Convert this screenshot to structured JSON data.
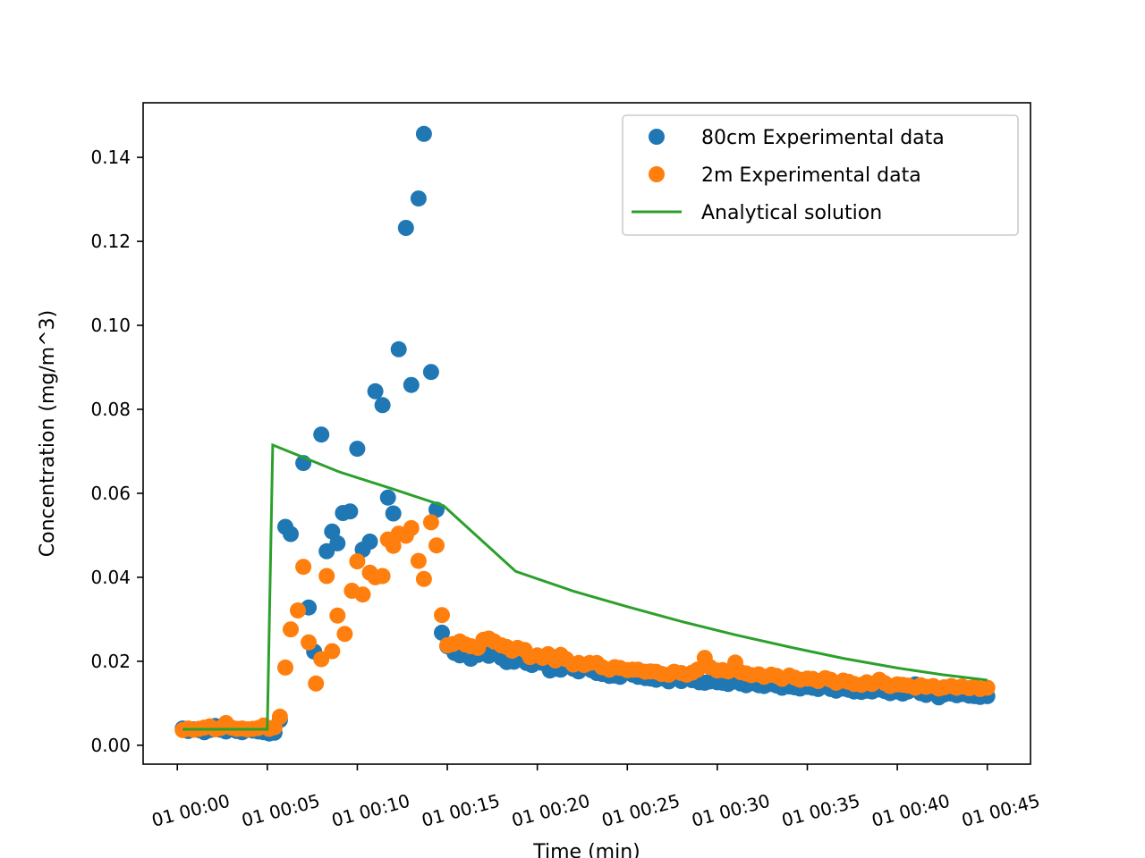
{
  "chart_data": {
    "type": "scatter",
    "xlabel": "Time (min)",
    "ylabel": "Concentration (mg/m^3)",
    "xlim": [
      -1.9,
      47.4
    ],
    "ylim": [
      -0.0045,
      0.153
    ],
    "x_ticks": [
      {
        "value": 0,
        "label": "01 00:00"
      },
      {
        "value": 5,
        "label": "01 00:05"
      },
      {
        "value": 10,
        "label": "01 00:10"
      },
      {
        "value": 15,
        "label": "01 00:15"
      },
      {
        "value": 20,
        "label": "01 00:20"
      },
      {
        "value": 25,
        "label": "01 00:25"
      },
      {
        "value": 30,
        "label": "01 00:30"
      },
      {
        "value": 35,
        "label": "01 00:35"
      },
      {
        "value": 40,
        "label": "01 00:40"
      },
      {
        "value": 45,
        "label": "01 00:45"
      }
    ],
    "y_ticks": [
      {
        "value": 0.0,
        "label": "0.00"
      },
      {
        "value": 0.02,
        "label": "0.02"
      },
      {
        "value": 0.04,
        "label": "0.04"
      },
      {
        "value": 0.06,
        "label": "0.06"
      },
      {
        "value": 0.08,
        "label": "0.08"
      },
      {
        "value": 0.1,
        "label": "0.10"
      },
      {
        "value": 0.12,
        "label": "0.12"
      },
      {
        "value": 0.14,
        "label": "0.14"
      }
    ],
    "grid": false,
    "legend_position": "top-right",
    "series": [
      {
        "name": "80cm Experimental data",
        "kind": "scatter",
        "color": "#1f77b4",
        "points": [
          [
            0.3,
            0.004
          ],
          [
            0.6,
            0.0034
          ],
          [
            0.9,
            0.0038
          ],
          [
            1.2,
            0.0036
          ],
          [
            1.5,
            0.0031
          ],
          [
            1.8,
            0.0036
          ],
          [
            2.1,
            0.0046
          ],
          [
            2.4,
            0.0037
          ],
          [
            2.7,
            0.0033
          ],
          [
            3.0,
            0.0038
          ],
          [
            3.3,
            0.0034
          ],
          [
            3.6,
            0.0031
          ],
          [
            3.9,
            0.0037
          ],
          [
            4.2,
            0.0035
          ],
          [
            4.5,
            0.0033
          ],
          [
            4.8,
            0.0031
          ],
          [
            5.1,
            0.0028
          ],
          [
            5.4,
            0.003
          ],
          [
            5.7,
            0.006
          ],
          [
            6.0,
            0.052
          ],
          [
            6.3,
            0.0503
          ],
          [
            7.0,
            0.0672
          ],
          [
            7.3,
            0.0328
          ],
          [
            7.6,
            0.0223
          ],
          [
            8.0,
            0.074
          ],
          [
            8.3,
            0.0462
          ],
          [
            8.6,
            0.0509
          ],
          [
            8.9,
            0.0481
          ],
          [
            9.2,
            0.0553
          ],
          [
            9.6,
            0.0557
          ],
          [
            10.0,
            0.0706
          ],
          [
            10.3,
            0.0466
          ],
          [
            10.7,
            0.0485
          ],
          [
            11.0,
            0.0843
          ],
          [
            11.4,
            0.081
          ],
          [
            11.7,
            0.059
          ],
          [
            12.0,
            0.0552
          ],
          [
            12.3,
            0.0943
          ],
          [
            12.7,
            0.1232
          ],
          [
            13.0,
            0.0858
          ],
          [
            13.4,
            0.1302
          ],
          [
            13.7,
            0.1456
          ],
          [
            14.1,
            0.0889
          ],
          [
            14.4,
            0.0561
          ],
          [
            14.7,
            0.0268
          ],
          [
            15.0,
            0.0236
          ],
          [
            15.4,
            0.022
          ],
          [
            15.7,
            0.0214
          ],
          [
            16.0,
            0.0227
          ],
          [
            16.3,
            0.0206
          ],
          [
            16.7,
            0.0215
          ],
          [
            17.0,
            0.022
          ],
          [
            17.3,
            0.0213
          ],
          [
            17.7,
            0.0228
          ],
          [
            18.0,
            0.0208
          ],
          [
            18.3,
            0.0198
          ],
          [
            18.7,
            0.0199
          ],
          [
            19.0,
            0.0209
          ],
          [
            19.4,
            0.0196
          ],
          [
            19.7,
            0.0191
          ],
          [
            20.0,
            0.0197
          ],
          [
            20.3,
            0.0196
          ],
          [
            20.7,
            0.0178
          ],
          [
            21.0,
            0.0182
          ],
          [
            21.3,
            0.018
          ],
          [
            21.6,
            0.0191
          ],
          [
            22.0,
            0.0182
          ],
          [
            22.3,
            0.0176
          ],
          [
            22.6,
            0.0185
          ],
          [
            23.0,
            0.0179
          ],
          [
            23.3,
            0.0172
          ],
          [
            23.6,
            0.017
          ],
          [
            24.0,
            0.0165
          ],
          [
            24.3,
            0.0166
          ],
          [
            24.6,
            0.0163
          ],
          [
            25.0,
            0.0173
          ],
          [
            25.3,
            0.0168
          ],
          [
            25.6,
            0.0163
          ],
          [
            26.0,
            0.016
          ],
          [
            26.3,
            0.0159
          ],
          [
            26.6,
            0.0156
          ],
          [
            27.0,
            0.0159
          ],
          [
            27.3,
            0.0152
          ],
          [
            27.6,
            0.0161
          ],
          [
            28.0,
            0.0153
          ],
          [
            28.3,
            0.0159
          ],
          [
            28.6,
            0.0155
          ],
          [
            29.0,
            0.015
          ],
          [
            29.3,
            0.0149
          ],
          [
            29.6,
            0.0152
          ],
          [
            30.0,
            0.015
          ],
          [
            30.3,
            0.0149
          ],
          [
            30.6,
            0.0146
          ],
          [
            31.0,
            0.0152
          ],
          [
            31.3,
            0.0147
          ],
          [
            31.6,
            0.0143
          ],
          [
            32.0,
            0.0148
          ],
          [
            32.3,
            0.0143
          ],
          [
            32.6,
            0.0141
          ],
          [
            33.0,
            0.0146
          ],
          [
            33.3,
            0.0142
          ],
          [
            33.6,
            0.0137
          ],
          [
            34.0,
            0.014
          ],
          [
            34.3,
            0.0138
          ],
          [
            34.6,
            0.0135
          ],
          [
            35.0,
            0.0139
          ],
          [
            35.3,
            0.0137
          ],
          [
            35.6,
            0.0134
          ],
          [
            36.0,
            0.014
          ],
          [
            36.3,
            0.0134
          ],
          [
            36.6,
            0.013
          ],
          [
            37.0,
            0.0135
          ],
          [
            37.3,
            0.0132
          ],
          [
            37.6,
            0.0128
          ],
          [
            38.0,
            0.0127
          ],
          [
            38.3,
            0.013
          ],
          [
            38.6,
            0.0128
          ],
          [
            39.0,
            0.0133
          ],
          [
            39.3,
            0.0129
          ],
          [
            39.6,
            0.0124
          ],
          [
            40.0,
            0.0128
          ],
          [
            40.3,
            0.0123
          ],
          [
            40.6,
            0.0128
          ],
          [
            41.0,
            0.0145
          ],
          [
            41.3,
            0.0124
          ],
          [
            41.6,
            0.012
          ],
          [
            42.0,
            0.0126
          ],
          [
            42.3,
            0.0114
          ],
          [
            42.6,
            0.0121
          ],
          [
            43.0,
            0.0123
          ],
          [
            43.3,
            0.0119
          ],
          [
            43.6,
            0.0122
          ],
          [
            44.0,
            0.0118
          ],
          [
            44.3,
            0.0117
          ],
          [
            44.6,
            0.0115
          ],
          [
            45.0,
            0.0117
          ]
        ]
      },
      {
        "name": "2m Experimental data",
        "kind": "scatter",
        "color": "#ff7f0e",
        "points": [
          [
            0.3,
            0.0036
          ],
          [
            0.6,
            0.004
          ],
          [
            0.9,
            0.0037
          ],
          [
            1.2,
            0.0039
          ],
          [
            1.5,
            0.0042
          ],
          [
            1.8,
            0.0045
          ],
          [
            2.1,
            0.0038
          ],
          [
            2.4,
            0.0041
          ],
          [
            2.7,
            0.0053
          ],
          [
            3.0,
            0.0042
          ],
          [
            3.3,
            0.0039
          ],
          [
            3.6,
            0.004
          ],
          [
            3.9,
            0.0038
          ],
          [
            4.2,
            0.0039
          ],
          [
            4.5,
            0.0041
          ],
          [
            4.8,
            0.0047
          ],
          [
            5.1,
            0.0039
          ],
          [
            5.4,
            0.0043
          ],
          [
            5.7,
            0.0068
          ],
          [
            6.0,
            0.0185
          ],
          [
            6.3,
            0.0276
          ],
          [
            6.7,
            0.0321
          ],
          [
            7.0,
            0.0425
          ],
          [
            7.3,
            0.0245
          ],
          [
            7.7,
            0.0147
          ],
          [
            8.0,
            0.0205
          ],
          [
            8.3,
            0.0403
          ],
          [
            8.6,
            0.0224
          ],
          [
            8.9,
            0.0309
          ],
          [
            9.3,
            0.0265
          ],
          [
            9.7,
            0.0368
          ],
          [
            10.0,
            0.0438
          ],
          [
            10.3,
            0.0359
          ],
          [
            10.7,
            0.0411
          ],
          [
            11.0,
            0.04
          ],
          [
            11.4,
            0.0403
          ],
          [
            11.7,
            0.049
          ],
          [
            12.0,
            0.0475
          ],
          [
            12.3,
            0.0504
          ],
          [
            12.7,
            0.0499
          ],
          [
            13.0,
            0.0517
          ],
          [
            13.4,
            0.0439
          ],
          [
            13.7,
            0.0396
          ],
          [
            14.1,
            0.0531
          ],
          [
            14.4,
            0.0476
          ],
          [
            14.7,
            0.031
          ],
          [
            15.0,
            0.0238
          ],
          [
            15.3,
            0.0241
          ],
          [
            15.7,
            0.0247
          ],
          [
            16.0,
            0.024
          ],
          [
            16.3,
            0.0236
          ],
          [
            16.7,
            0.0232
          ],
          [
            17.0,
            0.0251
          ],
          [
            17.3,
            0.0254
          ],
          [
            17.6,
            0.0247
          ],
          [
            18.0,
            0.0238
          ],
          [
            18.3,
            0.0234
          ],
          [
            18.6,
            0.0225
          ],
          [
            18.9,
            0.0232
          ],
          [
            19.3,
            0.0227
          ],
          [
            19.6,
            0.021
          ],
          [
            20.0,
            0.0214
          ],
          [
            20.3,
            0.0208
          ],
          [
            20.6,
            0.0217
          ],
          [
            21.0,
            0.0202
          ],
          [
            21.3,
            0.0215
          ],
          [
            21.6,
            0.0205
          ],
          [
            22.0,
            0.0192
          ],
          [
            22.3,
            0.0196
          ],
          [
            22.6,
            0.0191
          ],
          [
            22.9,
            0.0196
          ],
          [
            23.3,
            0.0196
          ],
          [
            23.6,
            0.0186
          ],
          [
            24.0,
            0.018
          ],
          [
            24.3,
            0.0186
          ],
          [
            24.6,
            0.0184
          ],
          [
            25.0,
            0.0179
          ],
          [
            25.3,
            0.018
          ],
          [
            25.6,
            0.018
          ],
          [
            26.0,
            0.0175
          ],
          [
            26.3,
            0.0176
          ],
          [
            26.6,
            0.0175
          ],
          [
            26.9,
            0.017
          ],
          [
            27.3,
            0.0168
          ],
          [
            27.6,
            0.0175
          ],
          [
            28.0,
            0.0172
          ],
          [
            28.3,
            0.0168
          ],
          [
            28.6,
            0.0173
          ],
          [
            28.9,
            0.018
          ],
          [
            29.3,
            0.0208
          ],
          [
            29.6,
            0.0186
          ],
          [
            30.0,
            0.0178
          ],
          [
            30.3,
            0.0179
          ],
          [
            30.6,
            0.0176
          ],
          [
            31.0,
            0.0197
          ],
          [
            31.3,
            0.0174
          ],
          [
            31.6,
            0.0171
          ],
          [
            31.9,
            0.0167
          ],
          [
            32.3,
            0.0169
          ],
          [
            32.6,
            0.0163
          ],
          [
            33.0,
            0.0168
          ],
          [
            33.3,
            0.0165
          ],
          [
            33.6,
            0.0158
          ],
          [
            34.0,
            0.0166
          ],
          [
            34.3,
            0.0161
          ],
          [
            34.6,
            0.0156
          ],
          [
            35.0,
            0.0159
          ],
          [
            35.3,
            0.0158
          ],
          [
            35.6,
            0.0153
          ],
          [
            36.0,
            0.016
          ],
          [
            36.3,
            0.0156
          ],
          [
            36.6,
            0.0149
          ],
          [
            37.0,
            0.0154
          ],
          [
            37.3,
            0.0151
          ],
          [
            37.6,
            0.0146
          ],
          [
            38.0,
            0.0144
          ],
          [
            38.3,
            0.015
          ],
          [
            38.6,
            0.0146
          ],
          [
            39.0,
            0.0156
          ],
          [
            39.3,
            0.0148
          ],
          [
            39.6,
            0.0141
          ],
          [
            40.0,
            0.0145
          ],
          [
            40.3,
            0.0144
          ],
          [
            40.6,
            0.0142
          ],
          [
            41.0,
            0.0137
          ],
          [
            41.3,
            0.0143
          ],
          [
            41.6,
            0.0139
          ],
          [
            42.0,
            0.0141
          ],
          [
            42.3,
            0.0135
          ],
          [
            42.6,
            0.0138
          ],
          [
            43.0,
            0.0141
          ],
          [
            43.3,
            0.0137
          ],
          [
            43.6,
            0.014
          ],
          [
            44.0,
            0.0136
          ],
          [
            44.3,
            0.0139
          ],
          [
            44.6,
            0.0134
          ],
          [
            45.0,
            0.0137
          ]
        ]
      },
      {
        "name": "Analytical solution",
        "kind": "line",
        "color": "#2ca02c",
        "points": [
          [
            0.3,
            0.0038
          ],
          [
            5.0,
            0.0038
          ],
          [
            5.3,
            0.0715
          ],
          [
            9.0,
            0.0651
          ],
          [
            12.0,
            0.061
          ],
          [
            14.8,
            0.057
          ],
          [
            18.8,
            0.0414
          ],
          [
            22.0,
            0.0367
          ],
          [
            25.0,
            0.033
          ],
          [
            28.0,
            0.0295
          ],
          [
            31.0,
            0.0263
          ],
          [
            34.0,
            0.0234
          ],
          [
            37.0,
            0.0207
          ],
          [
            40.0,
            0.0184
          ],
          [
            42.5,
            0.0168
          ],
          [
            45.0,
            0.0155
          ]
        ]
      }
    ]
  }
}
